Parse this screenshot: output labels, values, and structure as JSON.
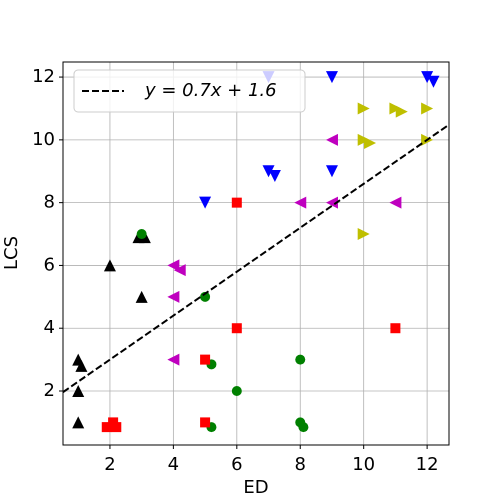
{
  "chart_data": {
    "type": "scatter",
    "xlabel": "ED",
    "ylabel": "LCS",
    "xlim": [
      0.52,
      12.69
    ],
    "ylim": [
      0.28,
      12.48
    ],
    "xticks": [
      2,
      4,
      6,
      8,
      10,
      12
    ],
    "yticks": [
      2,
      4,
      6,
      8,
      10,
      12
    ],
    "grid": true,
    "legend": "upper left",
    "fit": {
      "name": "y = 0.7x + 1.6",
      "slope": 0.7,
      "intercept": 1.6,
      "color": "#000000"
    },
    "series": [
      {
        "marker": "^",
        "color": "#000000",
        "x": [
          1,
          1.1,
          1,
          1,
          2,
          3,
          2.9,
          3.1,
          3
        ],
        "y": [
          3,
          2.8,
          2,
          1,
          6,
          5,
          6.9,
          6.9,
          6.95
        ]
      },
      {
        "marker": "o",
        "color": "#008000",
        "x": [
          3,
          5,
          5.2,
          6,
          5.2,
          8,
          8,
          8.1
        ],
        "y": [
          7,
          5,
          2.85,
          2,
          0.85,
          3,
          1,
          0.85
        ]
      },
      {
        "marker": "s",
        "color": "#ff0000",
        "x": [
          1.9,
          2.1,
          2.2,
          6,
          6,
          5,
          5,
          11
        ],
        "y": [
          0.85,
          1,
          0.85,
          8,
          4,
          3,
          1,
          4
        ]
      },
      {
        "marker": "<",
        "color": "#bf00bf",
        "x": [
          4,
          4.2,
          4,
          4,
          8,
          9,
          9,
          11
        ],
        "y": [
          6,
          5.85,
          5,
          3,
          8,
          8,
          10,
          8
        ]
      },
      {
        "marker": "v",
        "color": "#0000ff",
        "x": [
          5,
          7,
          7.2,
          9,
          9,
          7,
          12,
          12.2
        ],
        "y": [
          8,
          9,
          8.85,
          9,
          12,
          12,
          12,
          11.85
        ]
      },
      {
        "marker": ">",
        "color": "#bfbf00",
        "x": [
          10,
          11,
          11.2,
          12,
          10,
          10.2,
          12,
          10
        ],
        "y": [
          11,
          11,
          10.9,
          11,
          10,
          9.9,
          10,
          7
        ]
      }
    ]
  }
}
